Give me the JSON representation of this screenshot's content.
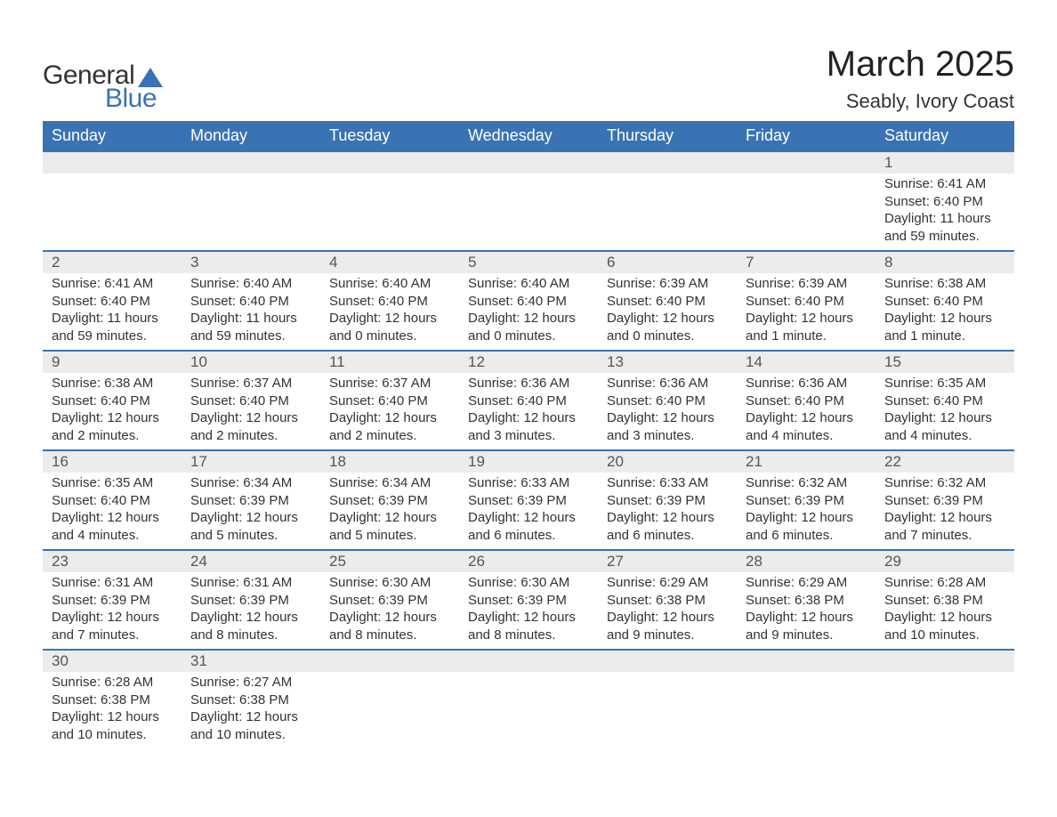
{
  "logo": {
    "text_primary": "General",
    "text_secondary": "Blue",
    "sail_color": "#3a73b3"
  },
  "header": {
    "month_title": "March 2025",
    "location": "Seably, Ivory Coast"
  },
  "style": {
    "header_bg": "#3a73b3",
    "header_fg": "#ffffff",
    "daynum_bg": "#ececec",
    "row_divider": "#3a73b3",
    "text_color": "#333333",
    "title_fontsize": 40,
    "location_fontsize": 22,
    "weekday_fontsize": 18,
    "daynum_fontsize": 17,
    "detail_fontsize": 15
  },
  "weekdays": [
    "Sunday",
    "Monday",
    "Tuesday",
    "Wednesday",
    "Thursday",
    "Friday",
    "Saturday"
  ],
  "weeks": [
    [
      null,
      null,
      null,
      null,
      null,
      null,
      {
        "day": "1",
        "sunrise": "Sunrise: 6:41 AM",
        "sunset": "Sunset: 6:40 PM",
        "daylight": "Daylight: 11 hours and 59 minutes."
      }
    ],
    [
      {
        "day": "2",
        "sunrise": "Sunrise: 6:41 AM",
        "sunset": "Sunset: 6:40 PM",
        "daylight": "Daylight: 11 hours and 59 minutes."
      },
      {
        "day": "3",
        "sunrise": "Sunrise: 6:40 AM",
        "sunset": "Sunset: 6:40 PM",
        "daylight": "Daylight: 11 hours and 59 minutes."
      },
      {
        "day": "4",
        "sunrise": "Sunrise: 6:40 AM",
        "sunset": "Sunset: 6:40 PM",
        "daylight": "Daylight: 12 hours and 0 minutes."
      },
      {
        "day": "5",
        "sunrise": "Sunrise: 6:40 AM",
        "sunset": "Sunset: 6:40 PM",
        "daylight": "Daylight: 12 hours and 0 minutes."
      },
      {
        "day": "6",
        "sunrise": "Sunrise: 6:39 AM",
        "sunset": "Sunset: 6:40 PM",
        "daylight": "Daylight: 12 hours and 0 minutes."
      },
      {
        "day": "7",
        "sunrise": "Sunrise: 6:39 AM",
        "sunset": "Sunset: 6:40 PM",
        "daylight": "Daylight: 12 hours and 1 minute."
      },
      {
        "day": "8",
        "sunrise": "Sunrise: 6:38 AM",
        "sunset": "Sunset: 6:40 PM",
        "daylight": "Daylight: 12 hours and 1 minute."
      }
    ],
    [
      {
        "day": "9",
        "sunrise": "Sunrise: 6:38 AM",
        "sunset": "Sunset: 6:40 PM",
        "daylight": "Daylight: 12 hours and 2 minutes."
      },
      {
        "day": "10",
        "sunrise": "Sunrise: 6:37 AM",
        "sunset": "Sunset: 6:40 PM",
        "daylight": "Daylight: 12 hours and 2 minutes."
      },
      {
        "day": "11",
        "sunrise": "Sunrise: 6:37 AM",
        "sunset": "Sunset: 6:40 PM",
        "daylight": "Daylight: 12 hours and 2 minutes."
      },
      {
        "day": "12",
        "sunrise": "Sunrise: 6:36 AM",
        "sunset": "Sunset: 6:40 PM",
        "daylight": "Daylight: 12 hours and 3 minutes."
      },
      {
        "day": "13",
        "sunrise": "Sunrise: 6:36 AM",
        "sunset": "Sunset: 6:40 PM",
        "daylight": "Daylight: 12 hours and 3 minutes."
      },
      {
        "day": "14",
        "sunrise": "Sunrise: 6:36 AM",
        "sunset": "Sunset: 6:40 PM",
        "daylight": "Daylight: 12 hours and 4 minutes."
      },
      {
        "day": "15",
        "sunrise": "Sunrise: 6:35 AM",
        "sunset": "Sunset: 6:40 PM",
        "daylight": "Daylight: 12 hours and 4 minutes."
      }
    ],
    [
      {
        "day": "16",
        "sunrise": "Sunrise: 6:35 AM",
        "sunset": "Sunset: 6:40 PM",
        "daylight": "Daylight: 12 hours and 4 minutes."
      },
      {
        "day": "17",
        "sunrise": "Sunrise: 6:34 AM",
        "sunset": "Sunset: 6:39 PM",
        "daylight": "Daylight: 12 hours and 5 minutes."
      },
      {
        "day": "18",
        "sunrise": "Sunrise: 6:34 AM",
        "sunset": "Sunset: 6:39 PM",
        "daylight": "Daylight: 12 hours and 5 minutes."
      },
      {
        "day": "19",
        "sunrise": "Sunrise: 6:33 AM",
        "sunset": "Sunset: 6:39 PM",
        "daylight": "Daylight: 12 hours and 6 minutes."
      },
      {
        "day": "20",
        "sunrise": "Sunrise: 6:33 AM",
        "sunset": "Sunset: 6:39 PM",
        "daylight": "Daylight: 12 hours and 6 minutes."
      },
      {
        "day": "21",
        "sunrise": "Sunrise: 6:32 AM",
        "sunset": "Sunset: 6:39 PM",
        "daylight": "Daylight: 12 hours and 6 minutes."
      },
      {
        "day": "22",
        "sunrise": "Sunrise: 6:32 AM",
        "sunset": "Sunset: 6:39 PM",
        "daylight": "Daylight: 12 hours and 7 minutes."
      }
    ],
    [
      {
        "day": "23",
        "sunrise": "Sunrise: 6:31 AM",
        "sunset": "Sunset: 6:39 PM",
        "daylight": "Daylight: 12 hours and 7 minutes."
      },
      {
        "day": "24",
        "sunrise": "Sunrise: 6:31 AM",
        "sunset": "Sunset: 6:39 PM",
        "daylight": "Daylight: 12 hours and 8 minutes."
      },
      {
        "day": "25",
        "sunrise": "Sunrise: 6:30 AM",
        "sunset": "Sunset: 6:39 PM",
        "daylight": "Daylight: 12 hours and 8 minutes."
      },
      {
        "day": "26",
        "sunrise": "Sunrise: 6:30 AM",
        "sunset": "Sunset: 6:39 PM",
        "daylight": "Daylight: 12 hours and 8 minutes."
      },
      {
        "day": "27",
        "sunrise": "Sunrise: 6:29 AM",
        "sunset": "Sunset: 6:38 PM",
        "daylight": "Daylight: 12 hours and 9 minutes."
      },
      {
        "day": "28",
        "sunrise": "Sunrise: 6:29 AM",
        "sunset": "Sunset: 6:38 PM",
        "daylight": "Daylight: 12 hours and 9 minutes."
      },
      {
        "day": "29",
        "sunrise": "Sunrise: 6:28 AM",
        "sunset": "Sunset: 6:38 PM",
        "daylight": "Daylight: 12 hours and 10 minutes."
      }
    ],
    [
      {
        "day": "30",
        "sunrise": "Sunrise: 6:28 AM",
        "sunset": "Sunset: 6:38 PM",
        "daylight": "Daylight: 12 hours and 10 minutes."
      },
      {
        "day": "31",
        "sunrise": "Sunrise: 6:27 AM",
        "sunset": "Sunset: 6:38 PM",
        "daylight": "Daylight: 12 hours and 10 minutes."
      },
      null,
      null,
      null,
      null,
      null
    ]
  ]
}
